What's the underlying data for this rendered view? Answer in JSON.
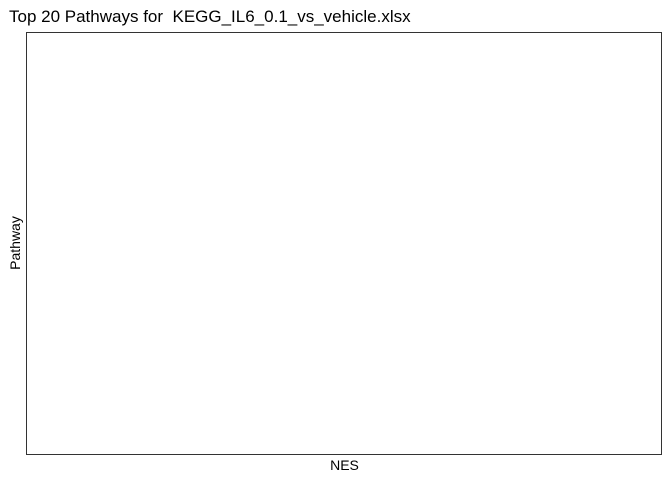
{
  "chart_data": {
    "type": "bar",
    "title": "Top 20 Pathways for  KEGG_IL6_0.1_vs_vehicle.xlsx",
    "xlabel": "NES",
    "ylabel": "Pathway",
    "categories": [],
    "values": [],
    "grid": false,
    "legend": "none",
    "colors": {
      "panel_border": "#333333",
      "background": "#ffffff",
      "text": "#000000"
    }
  }
}
